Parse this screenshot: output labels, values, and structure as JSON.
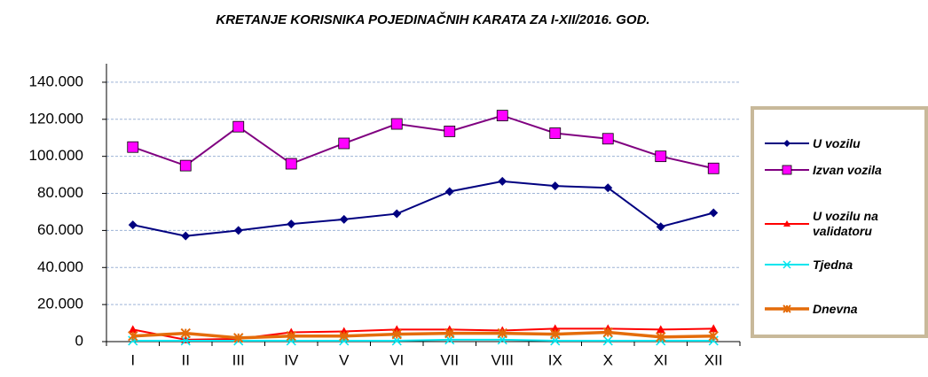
{
  "chart_data": {
    "type": "line",
    "title": "KRETANJE KORISNIKA POJEDINAČNIH KARATA  ZA I-XII/2016. GOD.",
    "categories": [
      "I",
      "II",
      "III",
      "IV",
      "V",
      "VI",
      "VII",
      "VIII",
      "IX",
      "X",
      "XI",
      "XII"
    ],
    "series": [
      {
        "name": "U vozilu",
        "color": "#000080",
        "marker": "diamond",
        "values": [
          63000,
          57000,
          60000,
          63500,
          66000,
          69000,
          81000,
          86500,
          84000,
          83000,
          62000,
          69500
        ]
      },
      {
        "name": "Izvan vozila",
        "color": "#800080",
        "marker_color": "#ff00ff",
        "marker": "square",
        "values": [
          105000,
          95000,
          116000,
          96000,
          107000,
          117500,
          113500,
          122000,
          112500,
          109500,
          100000,
          93500
        ]
      },
      {
        "name": "U vozilu na validatoru",
        "color": "#ff0000",
        "marker": "triangle",
        "values": [
          6500,
          1000,
          1500,
          5000,
          5500,
          6500,
          6500,
          6000,
          7000,
          7000,
          6500,
          7000
        ]
      },
      {
        "name": "Tjedna",
        "color": "#00e5ee",
        "marker": "x",
        "values": [
          500,
          500,
          500,
          500,
          500,
          500,
          1000,
          1000,
          500,
          500,
          500,
          500
        ]
      },
      {
        "name": "Dnevna",
        "color": "#e46c0a",
        "marker": "star",
        "values": [
          3000,
          4500,
          2000,
          3000,
          3000,
          4000,
          4500,
          4500,
          4000,
          5000,
          2500,
          3000
        ]
      }
    ],
    "ylim": [
      0,
      150000
    ],
    "yticks": [
      0,
      {
        "value": 20000,
        "label": "20.000"
      },
      {
        "value": 40000,
        "label": "40.000"
      },
      {
        "value": 60000,
        "label": "60.000"
      },
      {
        "value": 80000,
        "label": "80.000"
      },
      {
        "value": 100000,
        "label": "100.000"
      },
      {
        "value": 120000,
        "label": "120.000"
      },
      {
        "value": 140000,
        "label": "140.000"
      }
    ],
    "grid": true,
    "legend": "right"
  }
}
